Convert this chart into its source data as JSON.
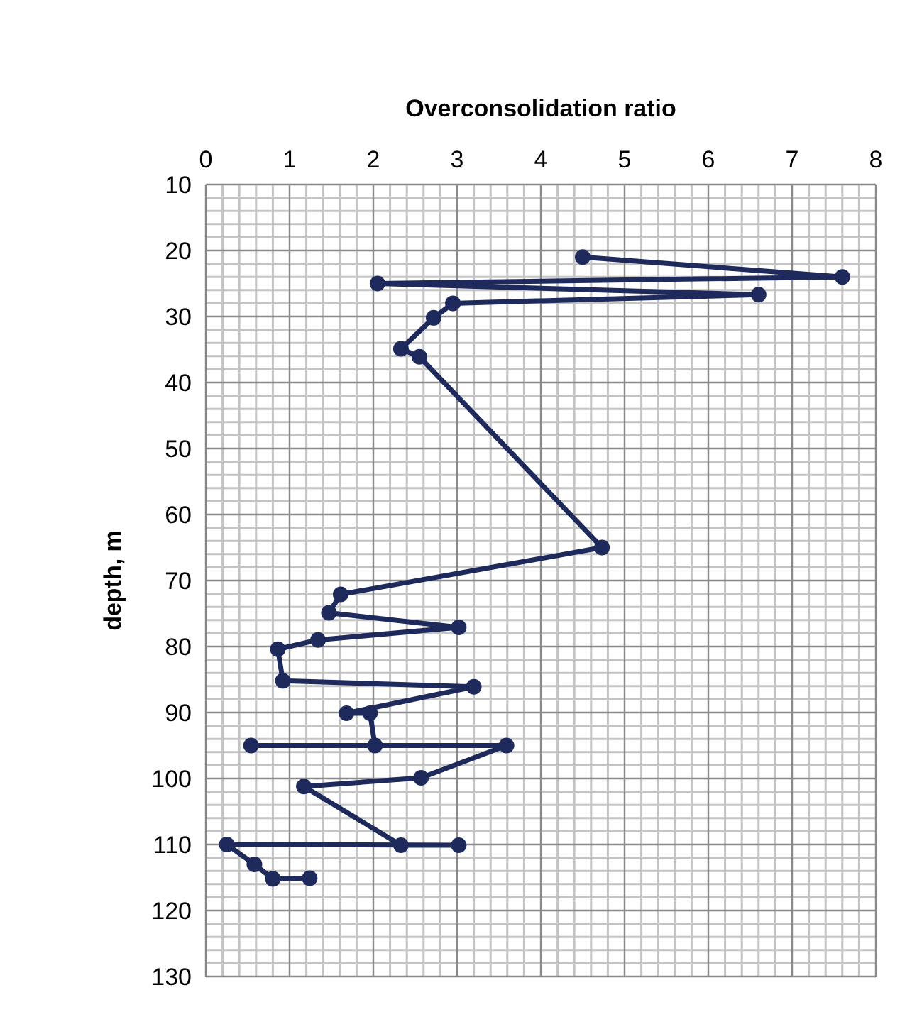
{
  "chart_data": {
    "type": "line",
    "xlabel": "Overconsolidation ratio",
    "ylabel": "depth, m",
    "x": [
      4.5,
      7.6,
      2.05,
      6.6,
      2.95,
      2.72,
      2.33,
      2.55,
      4.73,
      1.61,
      1.47,
      3.02,
      1.34,
      0.86,
      0.92,
      3.2,
      1.68,
      1.96,
      2.02,
      0.54,
      3.59,
      2.57,
      1.17,
      2.33,
      3.02,
      0.25,
      0.58,
      0.8,
      1.24
    ],
    "series": [
      {
        "color": "#1f2a5c",
        "values": [
          21,
          24,
          25,
          26.7,
          28,
          30.2,
          34.9,
          36.1,
          65,
          72.1,
          74.9,
          77.1,
          79,
          80.4,
          85.2,
          86.1,
          90.1,
          90.1,
          95,
          95,
          95,
          99.9,
          101.2,
          110.1,
          110.1,
          110,
          113,
          115.2,
          115.1
        ]
      }
    ],
    "xlim": [
      0,
      8
    ],
    "xticks": [
      0,
      1,
      2,
      3,
      4,
      5,
      6,
      7,
      8
    ],
    "ylim": [
      130,
      10
    ],
    "yticks": [
      10,
      20,
      30,
      40,
      50,
      60,
      70,
      80,
      90,
      100,
      110,
      120,
      130
    ],
    "grid": true,
    "marker": "circle",
    "line_style": "solid"
  }
}
